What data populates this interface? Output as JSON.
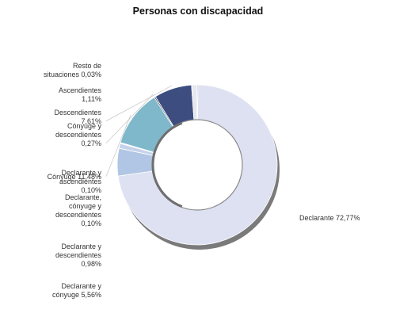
{
  "chart_data": {
    "type": "pie",
    "variant": "donut",
    "title": "Personas con discapacidad",
    "legend": "none",
    "slices": [
      {
        "name": "Declarante",
        "value": 72.77,
        "label_lines": [
          "Declarante 72,77%"
        ],
        "color": "#dde1f1"
      },
      {
        "name": "Declarante y cónyuge",
        "value": 5.56,
        "label_lines": [
          "Declarante y",
          "cónyuge 5,56%"
        ],
        "color": "#b1c6e4"
      },
      {
        "name": "Declarante y descendientes",
        "value": 0.98,
        "label_lines": [
          "Declarante y",
          "descendientes",
          "0,98%"
        ],
        "color": "#c5d2ea"
      },
      {
        "name": "Declarante, cónyuge y descendientes",
        "value": 0.1,
        "label_lines": [
          "Declarante,",
          "cónyuge y",
          "descendientes",
          "0,10%"
        ],
        "color": "#9fb5da"
      },
      {
        "name": "Declarante y ascendientes",
        "value": 0.1,
        "label_lines": [
          "Declarante y",
          "ascendientes",
          "0,10%"
        ],
        "color": "#9fb5da"
      },
      {
        "name": "Cónyuge",
        "value": 11.48,
        "label_lines": [
          "Cónyuge 11,48%"
        ],
        "color": "#7fb8cb"
      },
      {
        "name": "Cónyuge y descendientes",
        "value": 0.27,
        "label_lines": [
          "Cónyuge y",
          "descendientes",
          "0,27%"
        ],
        "color": "#454a4e"
      },
      {
        "name": "Descendientes",
        "value": 7.61,
        "label_lines": [
          "Descendientes",
          "7,61%"
        ],
        "color": "#3d4d7f"
      },
      {
        "name": "Ascendientes",
        "value": 1.11,
        "label_lines": [
          "Ascendientes",
          "1,11%"
        ],
        "color": "#e6e8ee"
      },
      {
        "name": "Resto de situaciones",
        "value": 0.03,
        "label_lines": [
          "Resto de",
          "situaciones 0,03%"
        ],
        "color": "#6b7da6"
      }
    ]
  }
}
